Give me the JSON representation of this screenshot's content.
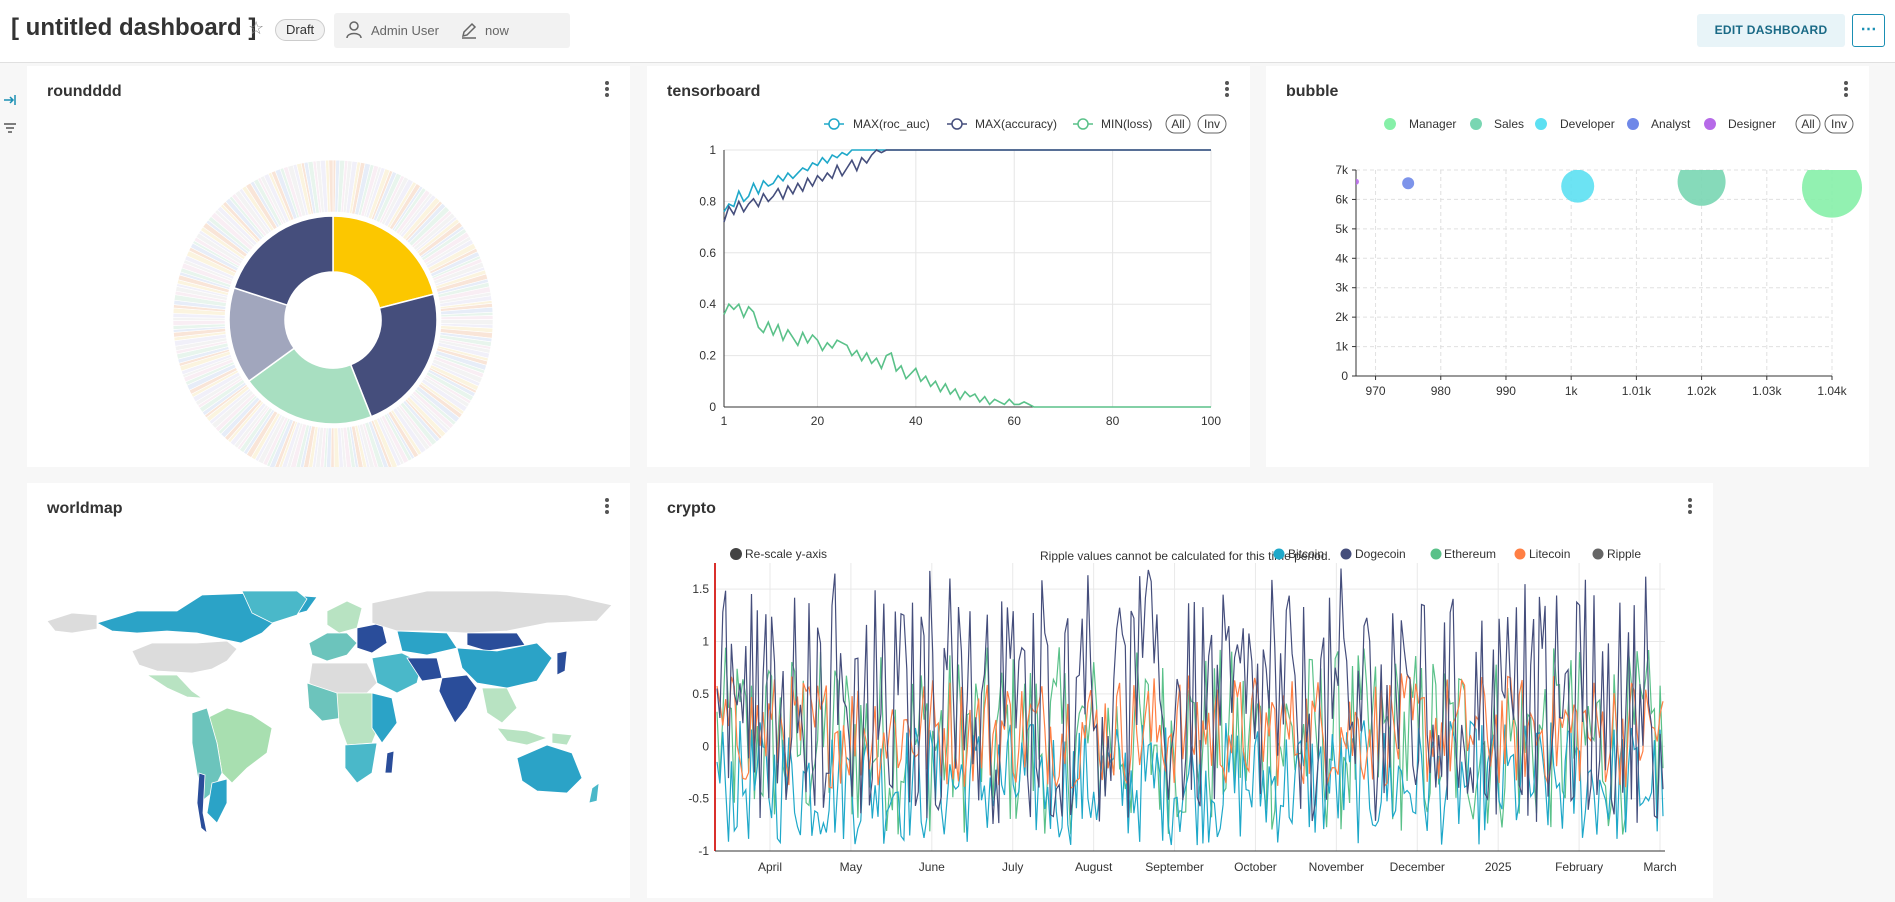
{
  "header": {
    "title": "[ untitled dashboard ]",
    "status_badge": "Draft",
    "owner": "Admin User",
    "modified": "now",
    "edit_button": "EDIT DASHBOARD",
    "more_button": "⋯"
  },
  "panels": {
    "roundddd": {
      "title": "roundddd"
    },
    "tensorboard": {
      "title": "tensorboard"
    },
    "bubble": {
      "title": "bubble"
    },
    "worldmap": {
      "title": "worldmap"
    },
    "crypto": {
      "title": "crypto",
      "rescale_label": "Re-scale y-axis",
      "notice": "Ripple values cannot be calculated for this time period."
    }
  },
  "legend_controls": {
    "all": "All",
    "inv": "Inv"
  },
  "colors": {
    "accent": "#1a8fb3",
    "donut_yellow": "#fcc700",
    "donut_navy": "#454e7c",
    "donut_green": "#a8dfc1",
    "donut_grey": "#a1a6bd",
    "roc_auc": "#1fa8c9",
    "accuracy": "#454e7c",
    "loss": "#5ac189"
  },
  "chart_data": [
    {
      "type": "pie",
      "panel": "roundddd",
      "title": "",
      "donut": true,
      "inner_slices": [
        {
          "value": 21,
          "color": "#fcc700"
        },
        {
          "value": 23,
          "color": "#454e7c"
        },
        {
          "value": 21,
          "color": "#a8dfc1"
        },
        {
          "value": 15,
          "color": "#a1a6bd"
        },
        {
          "value": 20,
          "color": "#454e7c"
        }
      ],
      "outer_ring": "many faint thin slices"
    },
    {
      "type": "line",
      "panel": "tensorboard",
      "xlim": [
        1,
        100
      ],
      "ylim": [
        0,
        1
      ],
      "x_ticks": [
        1,
        20,
        40,
        60,
        80,
        100
      ],
      "y_ticks": [
        0,
        0.2,
        0.4,
        0.6,
        0.8,
        1
      ],
      "legend_position": "top-right",
      "series": [
        {
          "name": "MAX(roc_auc)",
          "color": "#1fa8c9",
          "values": [
            0.76,
            0.79,
            0.78,
            0.84,
            0.8,
            0.82,
            0.87,
            0.83,
            0.88,
            0.86,
            0.87,
            0.9,
            0.88,
            0.91,
            0.89,
            0.91,
            0.93,
            0.92,
            0.95,
            0.94,
            0.97,
            0.95,
            0.98,
            0.97,
            0.99,
            0.98,
            1,
            1,
            1,
            1,
            1,
            1,
            1,
            1,
            1,
            1,
            1,
            1,
            1,
            1,
            1,
            1,
            1,
            1,
            1,
            1,
            1,
            1,
            1,
            1,
            1,
            1,
            1,
            1,
            1,
            1,
            1,
            1,
            1,
            1,
            1,
            1,
            1,
            1,
            1,
            1,
            1,
            1,
            1,
            1,
            1,
            1,
            1,
            1,
            1,
            1,
            1,
            1,
            1,
            1,
            1,
            1,
            1,
            1,
            1,
            1,
            1,
            1,
            1,
            1,
            1,
            1,
            1,
            1,
            1,
            1,
            1,
            1,
            1,
            1
          ]
        },
        {
          "name": "MAX(accuracy)",
          "color": "#454e7c",
          "values": [
            0.72,
            0.78,
            0.75,
            0.8,
            0.76,
            0.79,
            0.81,
            0.78,
            0.83,
            0.8,
            0.82,
            0.85,
            0.81,
            0.86,
            0.83,
            0.87,
            0.84,
            0.89,
            0.86,
            0.9,
            0.88,
            0.91,
            0.89,
            0.94,
            0.9,
            0.93,
            0.96,
            0.92,
            0.97,
            0.95,
            0.98,
            1,
            0.99,
            1,
            1,
            1,
            1,
            1,
            1,
            1,
            1,
            1,
            1,
            1,
            1,
            1,
            1,
            1,
            1,
            1,
            1,
            1,
            1,
            1,
            1,
            1,
            1,
            1,
            1,
            1,
            1,
            1,
            1,
            1,
            1,
            1,
            1,
            1,
            1,
            1,
            1,
            1,
            1,
            1,
            1,
            1,
            1,
            1,
            1,
            1,
            1,
            1,
            1,
            1,
            1,
            1,
            1,
            1,
            1,
            1,
            1,
            1,
            1,
            1,
            1,
            1,
            1,
            1,
            1,
            1
          ]
        },
        {
          "name": "MIN(loss)",
          "color": "#5ac189",
          "values": [
            0.36,
            0.4,
            0.38,
            0.4,
            0.35,
            0.39,
            0.37,
            0.31,
            0.29,
            0.33,
            0.28,
            0.32,
            0.26,
            0.3,
            0.27,
            0.24,
            0.29,
            0.25,
            0.28,
            0.26,
            0.22,
            0.25,
            0.23,
            0.26,
            0.25,
            0.24,
            0.2,
            0.22,
            0.18,
            0.21,
            0.17,
            0.19,
            0.15,
            0.2,
            0.21,
            0.14,
            0.16,
            0.11,
            0.13,
            0.15,
            0.1,
            0.12,
            0.08,
            0.1,
            0.06,
            0.09,
            0.05,
            0.07,
            0.03,
            0.06,
            0.04,
            0.05,
            0.02,
            0.04,
            0.01,
            0.03,
            0.02,
            0.01,
            0.03,
            0.01,
            0.01,
            0.02,
            0.01,
            0,
            0,
            0,
            0,
            0,
            0,
            0,
            0,
            0,
            0,
            0,
            0,
            0,
            0,
            0,
            0,
            0,
            0,
            0,
            0,
            0,
            0,
            0,
            0,
            0,
            0,
            0,
            0,
            0,
            0,
            0,
            0,
            0,
            0,
            0,
            0,
            0
          ]
        }
      ]
    },
    {
      "type": "scatter",
      "panel": "bubble",
      "xlim": [
        967,
        1040
      ],
      "ylim": [
        0,
        7000
      ],
      "x_ticks": [
        "970",
        "980",
        "990",
        "1k",
        "1.01k",
        "1.02k",
        "1.03k",
        "1.04k"
      ],
      "x_tick_values": [
        970,
        980,
        990,
        1000,
        1010,
        1020,
        1030,
        1040
      ],
      "y_ticks": [
        "0",
        "1k",
        "2k",
        "3k",
        "4k",
        "5k",
        "6k",
        "7k"
      ],
      "y_tick_values": [
        0,
        1000,
        2000,
        3000,
        4000,
        5000,
        6000,
        7000
      ],
      "grid": true,
      "legend_position": "top-right",
      "series": [
        {
          "name": "Manager",
          "color": "#86f0a8",
          "x": 1040,
          "y": 6400,
          "size": 1.0
        },
        {
          "name": "Sales",
          "color": "#79d6b2",
          "x": 1020,
          "y": 6600,
          "size": 0.8
        },
        {
          "name": "Developer",
          "color": "#5ce0f2",
          "x": 1001,
          "y": 6450,
          "size": 0.55
        },
        {
          "name": "Analyst",
          "color": "#6f88e8",
          "x": 975,
          "y": 6550,
          "size": 0.2
        },
        {
          "name": "Designer",
          "color": "#b66ae8",
          "x": 967,
          "y": 6600,
          "size": 0.08
        }
      ]
    },
    {
      "type": "line",
      "panel": "crypto",
      "ylim": [
        -1,
        1.75
      ],
      "y_ticks": [
        "-1",
        "-0.5",
        "0",
        "0.5",
        "1",
        "1.5"
      ],
      "x_ticks": [
        "April",
        "May",
        "June",
        "July",
        "August",
        "September",
        "October",
        "November",
        "December",
        "2025",
        "February",
        "March"
      ],
      "series": [
        {
          "name": "Bitcoin",
          "color": "#1fa8c9"
        },
        {
          "name": "Dogecoin",
          "color": "#454e7c"
        },
        {
          "name": "Ethereum",
          "color": "#5ac189"
        },
        {
          "name": "Litecoin",
          "color": "#ff7f44"
        },
        {
          "name": "Ripple",
          "color": "#666666"
        }
      ],
      "pattern": "high-frequency oscillating daily values"
    }
  ]
}
